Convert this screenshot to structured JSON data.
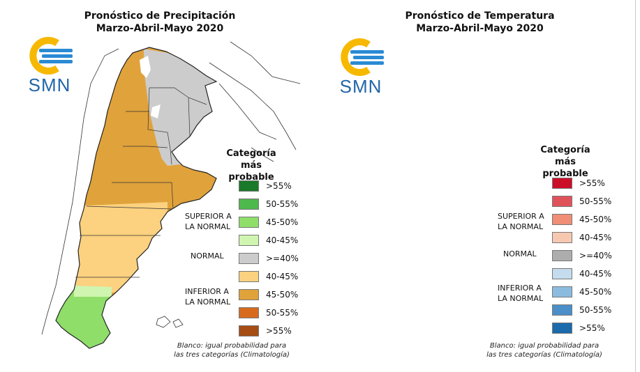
{
  "colors": {
    "precip_inferior_45_50": "#e0a23b",
    "precip_inferior_40_45": "#fcd17f",
    "precip_superior_45_50": "#8fde6a",
    "temp_superior_45_50": "#f08f75",
    "temp_superior_40_45": "#f6c8b0",
    "normal_gray": "#cccccc",
    "temp_normal_gray": "#adadad",
    "logo_yellow": "#f7b800",
    "logo_blue": "#2a8ad4"
  },
  "precipitation": {
    "title_line1": "Pronóstico de Precipitación",
    "title_line2": "Marzo-Abril-Mayo 2020",
    "logo_text": "SMN",
    "legend": {
      "heading_line1": "Categoría más",
      "heading_line2": "probable",
      "group_superior_line1": "SUPERIOR A",
      "group_superior_line2": "LA NORMAL",
      "group_normal": "NORMAL",
      "group_inferior_line1": "INFERIOR A",
      "group_inferior_line2": "LA NORMAL",
      "items": [
        {
          "label": ">55%",
          "color": "#1a7a2a"
        },
        {
          "label": "50-55%",
          "color": "#4db84d"
        },
        {
          "label": "45-50%",
          "color": "#8fde6a"
        },
        {
          "label": "40-45%",
          "color": "#cff5b0"
        },
        {
          "label": ">=40%",
          "color": "#cccccc"
        },
        {
          "label": "40-45%",
          "color": "#fcd17f"
        },
        {
          "label": "45-50%",
          "color": "#e0a23b"
        },
        {
          "label": "50-55%",
          "color": "#d86a1e"
        },
        {
          "label": ">55%",
          "color": "#a54d14"
        }
      ],
      "note_line1": "Blanco: igual probabilidad para",
      "note_line2": "las tres categorías (Climatología)"
    }
  },
  "temperature": {
    "title_line1": "Pronóstico de Temperatura",
    "title_line2": "Marzo-Abril-Mayo 2020",
    "logo_text": "SMN",
    "legend": {
      "heading_line1": "Categoría más",
      "heading_line2": "probable",
      "group_superior_line1": "SUPERIOR A",
      "group_superior_line2": "LA NORMAL",
      "group_normal": "NORMAL",
      "group_inferior_line1": "INFERIOR A",
      "group_inferior_line2": "LA NORMAL",
      "items": [
        {
          "label": ">55%",
          "color": "#cc0f28"
        },
        {
          "label": "50-55%",
          "color": "#e0525a"
        },
        {
          "label": "45-50%",
          "color": "#f08f75"
        },
        {
          "label": "40-45%",
          "color": "#f6c8b0"
        },
        {
          "label": ">=40%",
          "color": "#adadad"
        },
        {
          "label": "40-45%",
          "color": "#c4dcee"
        },
        {
          "label": "45-50%",
          "color": "#8bbcdf"
        },
        {
          "label": "50-55%",
          "color": "#4a8fc8"
        },
        {
          "label": ">55%",
          "color": "#1a6aac"
        }
      ],
      "note_line1": "Blanco: igual probabilidad para",
      "note_line2": "las tres categorías (Climatología)"
    }
  }
}
